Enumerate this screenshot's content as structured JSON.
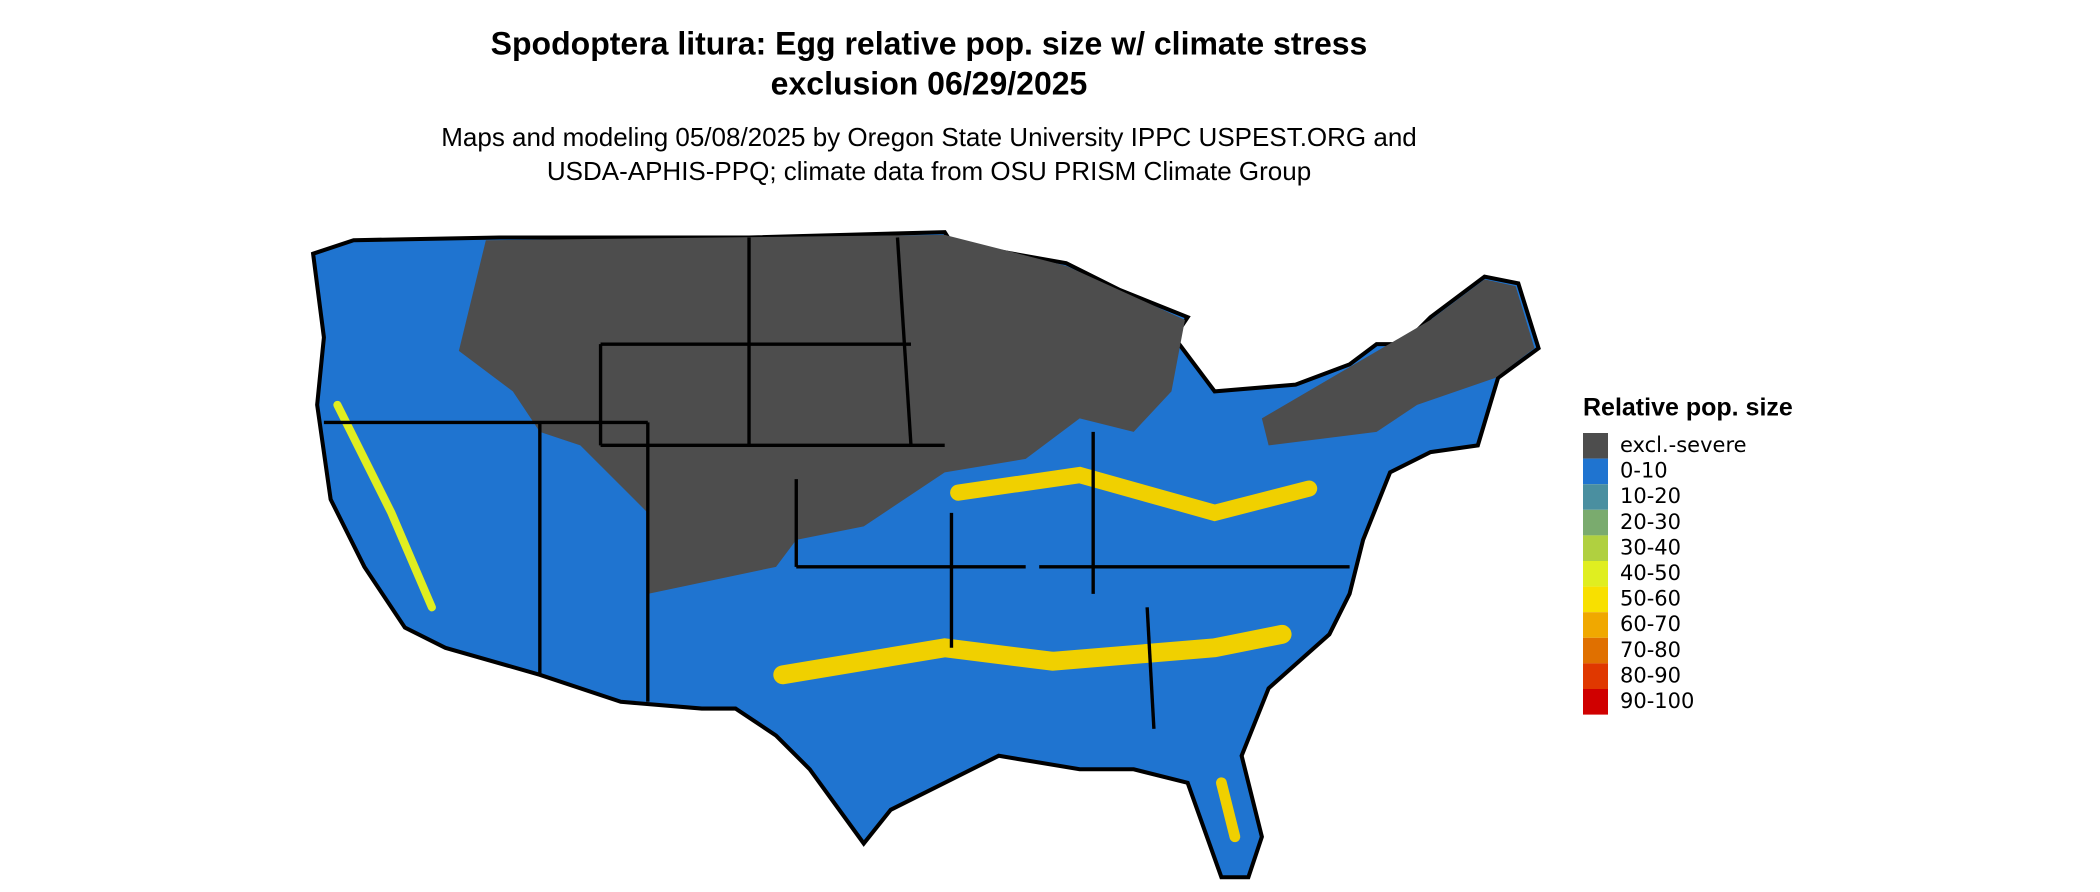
{
  "header": {
    "title": [
      "Spodoptera litura: Egg relative pop. size w/ climate stress",
      "exclusion 06/29/2025"
    ],
    "subtitle": [
      "Maps and modeling 05/08/2025 by Oregon State University IPPC USPEST.ORG and",
      "USDA-APHIS-PPQ; climate data from OSU PRISM Climate Group"
    ]
  },
  "legend": {
    "title": "Relative pop. size",
    "items": [
      {
        "label": "excl.-severe",
        "color": "#4d4d4d"
      },
      {
        "label": "0-10",
        "color": "#1f74d0"
      },
      {
        "label": "10-20",
        "color": "#4a8fa0"
      },
      {
        "label": "20-30",
        "color": "#7aab6e"
      },
      {
        "label": "30-40",
        "color": "#b0d040"
      },
      {
        "label": "40-50",
        "color": "#e0ee20"
      },
      {
        "label": "50-60",
        "color": "#f8e000"
      },
      {
        "label": "60-70",
        "color": "#f0a800"
      },
      {
        "label": "70-80",
        "color": "#e07000"
      },
      {
        "label": "80-90",
        "color": "#e03800"
      },
      {
        "label": "90-100",
        "color": "#d00000"
      }
    ]
  }
}
